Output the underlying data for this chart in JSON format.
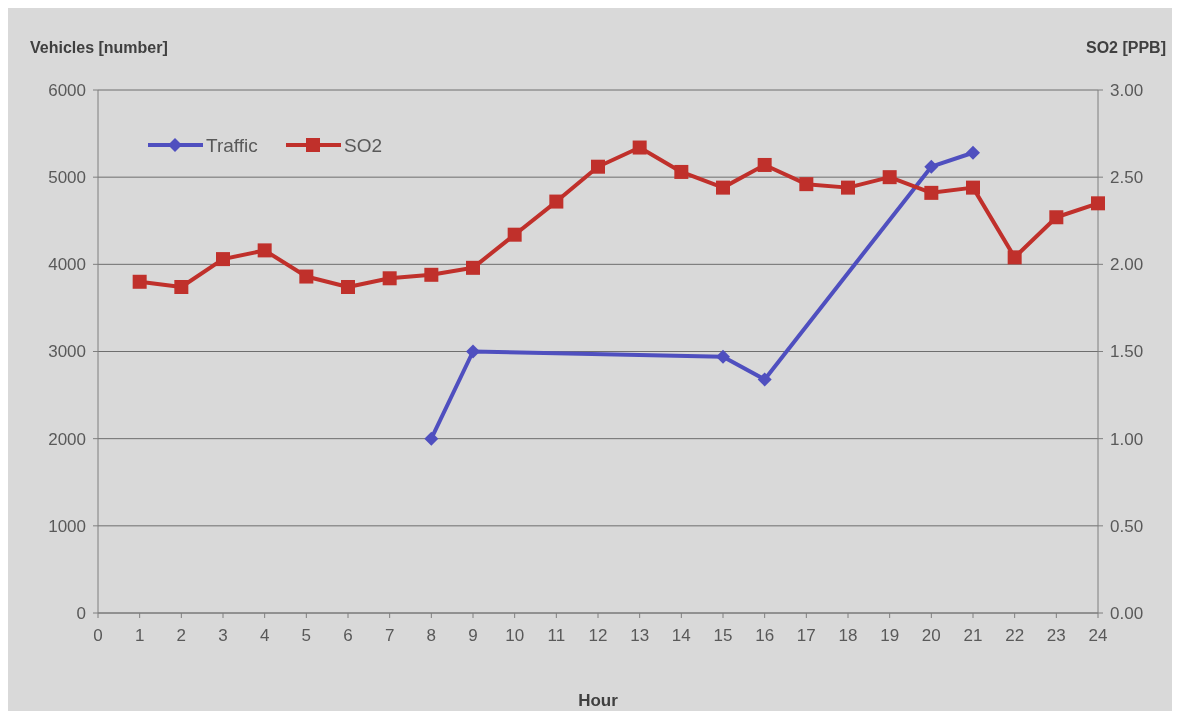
{
  "chart_data": {
    "type": "line",
    "xlabel": "Hour",
    "ylabel": "Vehicles [number]",
    "y2label": "SO2 [PPB]",
    "xlim": [
      0,
      24
    ],
    "xticks": [
      0,
      1,
      2,
      3,
      4,
      5,
      6,
      7,
      8,
      9,
      10,
      11,
      12,
      13,
      14,
      15,
      16,
      17,
      18,
      19,
      20,
      21,
      22,
      23,
      24
    ],
    "ylim": [
      0,
      6000
    ],
    "yticks": [
      0,
      1000,
      2000,
      3000,
      4000,
      5000,
      6000
    ],
    "y2lim": [
      0,
      3
    ],
    "y2ticks": [
      {
        "value": 0,
        "label": "0.00"
      },
      {
        "value": 0.5,
        "label": "0.50"
      },
      {
        "value": 1,
        "label": "1.00"
      },
      {
        "value": 1.5,
        "label": "1.50"
      },
      {
        "value": 2,
        "label": "2.00"
      },
      {
        "value": 2.5,
        "label": "2.50"
      },
      {
        "value": 3,
        "label": "3.00"
      }
    ],
    "grid": "y",
    "legend": "top left",
    "series": [
      {
        "name": "Traffic",
        "color": "#4f4fbf",
        "marker": "diamond",
        "x": [
          8,
          9,
          15,
          16,
          20,
          21
        ],
        "values": [
          2000,
          3000,
          2940,
          2680,
          5120,
          5280
        ]
      },
      {
        "name": "SO2",
        "color": "#c0302b",
        "marker": "square",
        "axis": "y2",
        "x": [
          1,
          2,
          3,
          4,
          5,
          6,
          7,
          8,
          9,
          10,
          11,
          12,
          13,
          14,
          15,
          16,
          17,
          18,
          19,
          20,
          21,
          22,
          23,
          24
        ],
        "values": [
          1.9,
          1.87,
          2.03,
          2.08,
          1.93,
          1.87,
          1.92,
          1.94,
          1.98,
          2.17,
          2.36,
          2.56,
          2.67,
          2.53,
          2.44,
          2.57,
          2.46,
          2.44,
          2.5,
          2.41,
          2.44,
          2.04,
          2.27,
          2.35
        ]
      }
    ]
  }
}
